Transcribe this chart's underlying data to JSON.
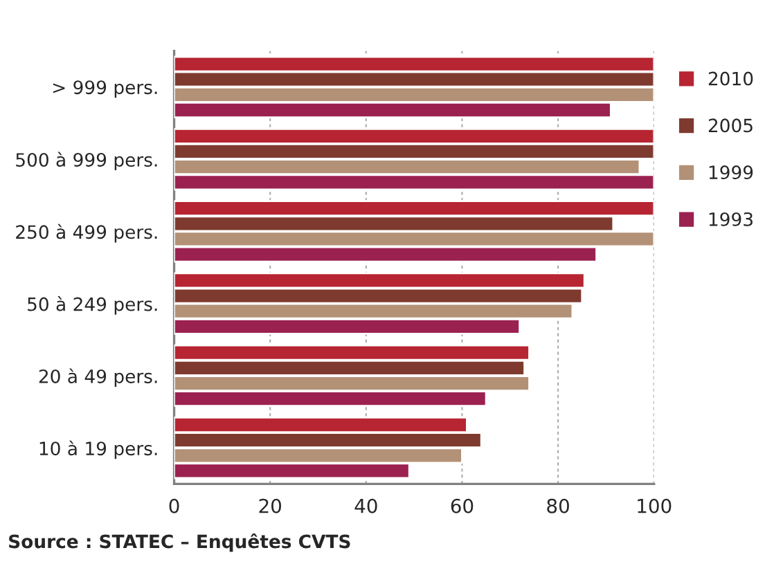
{
  "chart_data": {
    "type": "bar",
    "orientation": "horizontal",
    "categories": [
      "> 999 pers.",
      "500 à 999 pers.",
      "250 à 499 pers.",
      "50 à 249 pers.",
      "20 à 49 pers.",
      "10 à 19 pers."
    ],
    "series": [
      {
        "name": "2010",
        "color": "#b72532",
        "values": [
          100,
          100,
          100,
          85.5,
          74,
          61
        ]
      },
      {
        "name": "2005",
        "color": "#7f3a30",
        "values": [
          100,
          100,
          91.5,
          85,
          73,
          64
        ]
      },
      {
        "name": "1999",
        "color": "#b39177",
        "values": [
          100,
          97,
          100,
          83,
          74,
          60
        ]
      },
      {
        "name": "1993",
        "color": "#9b2150",
        "values": [
          91,
          100,
          88,
          72,
          65,
          49
        ]
      }
    ],
    "xlim": [
      0,
      100
    ],
    "xticks": [
      0,
      20,
      40,
      60,
      80,
      100
    ],
    "grid": "x",
    "legend": "right",
    "annotations": [
      "Source : STATEC – Enquêtes CVTS"
    ]
  }
}
